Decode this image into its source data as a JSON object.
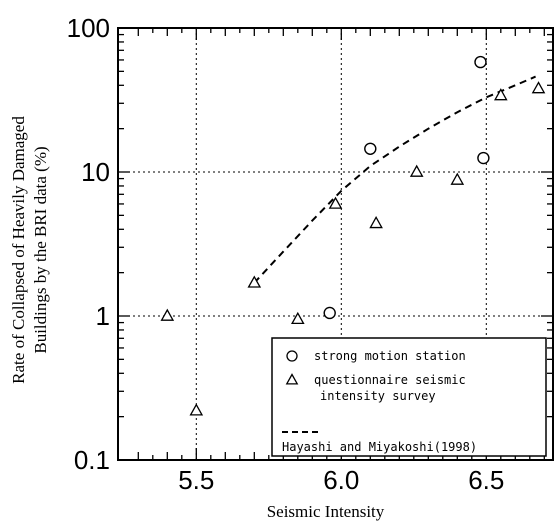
{
  "chart_data": {
    "type": "scatter",
    "xlabel": "Seismic Intensity",
    "ylabel_lines": [
      "Rate of Collapsed of Heavily Damaged",
      "Buildings by the BRI data (%)"
    ],
    "xlim": [
      5.23,
      6.73
    ],
    "ylim": [
      0.1,
      100
    ],
    "yscale": "log",
    "x_ticks": [
      5.5,
      6.0,
      6.5
    ],
    "x_tick_labels": [
      "5.5",
      "6.0",
      "6.5"
    ],
    "y_ticks": [
      0.1,
      1,
      10,
      100
    ],
    "y_tick_labels": [
      "0.1",
      "1",
      "10",
      "100"
    ],
    "grid": true,
    "legend_position": "bottom-right",
    "series": [
      {
        "name": "strong motion station",
        "marker": "circle",
        "points": [
          {
            "x": 5.96,
            "y": 1.05
          },
          {
            "x": 6.1,
            "y": 14.5
          },
          {
            "x": 6.48,
            "y": 58
          },
          {
            "x": 6.49,
            "y": 12.5
          }
        ]
      },
      {
        "name_lines": [
          "questionnaire seismic",
          "intensity survey"
        ],
        "marker": "triangle",
        "points": [
          {
            "x": 5.4,
            "y": 1.0
          },
          {
            "x": 5.5,
            "y": 0.22
          },
          {
            "x": 5.7,
            "y": 1.7
          },
          {
            "x": 5.85,
            "y": 0.95
          },
          {
            "x": 5.98,
            "y": 6.0
          },
          {
            "x": 6.12,
            "y": 4.4
          },
          {
            "x": 6.26,
            "y": 10.0
          },
          {
            "x": 6.4,
            "y": 8.8
          },
          {
            "x": 6.55,
            "y": 34
          },
          {
            "x": 6.68,
            "y": 38
          }
        ]
      },
      {
        "name": "Hayashi and Miyakoshi(1998)",
        "style": "dashed-line",
        "points": [
          {
            "x": 5.7,
            "y": 1.7
          },
          {
            "x": 5.8,
            "y": 2.8
          },
          {
            "x": 5.9,
            "y": 4.6
          },
          {
            "x": 6.0,
            "y": 7.4
          },
          {
            "x": 6.1,
            "y": 11.0
          },
          {
            "x": 6.2,
            "y": 15.0
          },
          {
            "x": 6.3,
            "y": 20.0
          },
          {
            "x": 6.4,
            "y": 26.0
          },
          {
            "x": 6.5,
            "y": 33.0
          },
          {
            "x": 6.6,
            "y": 40.0
          },
          {
            "x": 6.67,
            "y": 46.0
          }
        ]
      }
    ]
  }
}
